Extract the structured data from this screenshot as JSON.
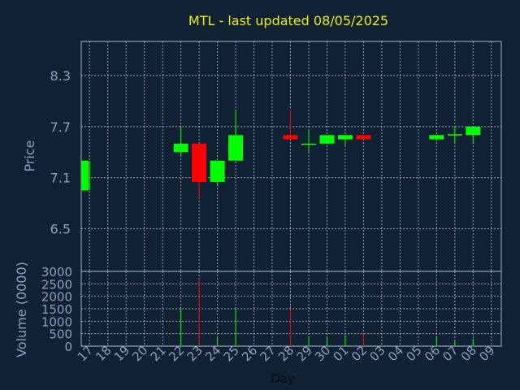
{
  "chart_data": {
    "type": "candlestick",
    "title": "MTL - last updated 08/05/2025",
    "xlabel": "Day",
    "price_panel": {
      "ylabel": "Price",
      "yticks": [
        "6.5",
        "7.1",
        "7.7",
        "8.3"
      ],
      "ylim": [
        6.0,
        8.7
      ]
    },
    "volume_panel": {
      "ylabel": "Volume (0000)",
      "yticks": [
        "0",
        "500",
        "1000",
        "1500",
        "2000",
        "2500",
        "3000"
      ],
      "ylim": [
        0,
        3000
      ]
    },
    "categories": [
      "17",
      "18",
      "19",
      "20",
      "21",
      "22",
      "23",
      "24",
      "25",
      "26",
      "27",
      "28",
      "29",
      "30",
      "01",
      "02",
      "03",
      "04",
      "05",
      "06",
      "07",
      "08",
      "09"
    ],
    "candles": [
      {
        "day": "17",
        "open": 6.95,
        "high": 7.3,
        "low": 6.95,
        "close": 7.3,
        "volume": 0
      },
      {
        "day": "22",
        "open": 7.4,
        "high": 7.7,
        "low": 7.35,
        "close": 7.5,
        "volume": 1500
      },
      {
        "day": "23",
        "open": 7.5,
        "high": 7.5,
        "low": 6.85,
        "close": 7.05,
        "volume": 2700
      },
      {
        "day": "24",
        "open": 7.05,
        "high": 7.3,
        "low": 7.0,
        "close": 7.3,
        "volume": 350
      },
      {
        "day": "25",
        "open": 7.3,
        "high": 7.9,
        "low": 7.3,
        "close": 7.6,
        "volume": 1500
      },
      {
        "day": "28",
        "open": 7.6,
        "high": 7.9,
        "low": 7.55,
        "close": 7.55,
        "volume": 1500
      },
      {
        "day": "29",
        "open": 7.49,
        "high": 7.66,
        "low": 7.4,
        "close": 7.5,
        "volume": 400
      },
      {
        "day": "30",
        "open": 7.5,
        "high": 7.6,
        "low": 7.5,
        "close": 7.6,
        "volume": 350
      },
      {
        "day": "01",
        "open": 7.55,
        "high": 7.6,
        "low": 7.48,
        "close": 7.6,
        "volume": 450
      },
      {
        "day": "02",
        "open": 7.6,
        "high": 7.6,
        "low": 7.55,
        "close": 7.55,
        "volume": 500
      },
      {
        "day": "06",
        "open": 7.55,
        "high": 7.6,
        "low": 7.55,
        "close": 7.6,
        "volume": 400
      },
      {
        "day": "07",
        "open": 7.6,
        "high": 7.7,
        "low": 7.5,
        "close": 7.61,
        "volume": 200
      },
      {
        "day": "08",
        "open": 7.6,
        "high": 7.7,
        "low": 7.5,
        "close": 7.7,
        "volume": 300
      }
    ],
    "colors": {
      "up": "#00ff00",
      "down": "#ff0000",
      "title": "#f0f000",
      "axis_text": "#8aa2bf",
      "background": "#0f2133"
    },
    "grid": true
  }
}
